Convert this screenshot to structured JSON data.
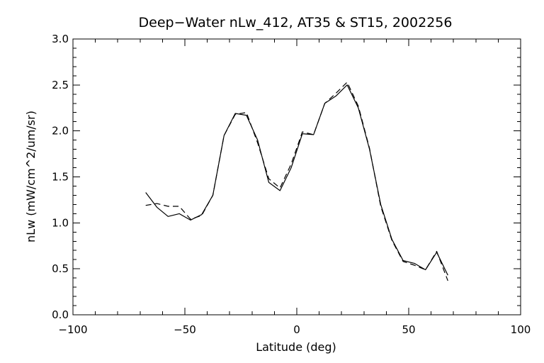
{
  "chart_data": {
    "type": "line",
    "title": "Deep−Water nLw_412, AT35 & ST15, 2002256",
    "xlabel": "Latitude (deg)",
    "ylabel": "nLw (mW/cm^2/um/sr)",
    "xlim": [
      -100,
      100
    ],
    "ylim": [
      0.0,
      3.0
    ],
    "x_ticks": [
      -100,
      -50,
      0,
      50,
      100
    ],
    "x_tick_labels": [
      "−100",
      "−50",
      "0",
      "50",
      "100"
    ],
    "y_ticks": [
      0.0,
      0.5,
      1.0,
      1.5,
      2.0,
      2.5,
      3.0
    ],
    "y_tick_labels": [
      "0.0",
      "0.5",
      "1.0",
      "1.5",
      "2.0",
      "2.5",
      "3.0"
    ],
    "grid": false,
    "legend": "none",
    "series": [
      {
        "style": "solid",
        "color": "#000000",
        "x": [
          -67.5,
          -62.5,
          -57.5,
          -52.5,
          -47.5,
          -42.5,
          -37.5,
          -32.5,
          -27.5,
          -22.5,
          -17.5,
          -12.5,
          -7.5,
          -2.5,
          2.5,
          7.5,
          12.5,
          17.5,
          22.5,
          27.5,
          32.5,
          37.5,
          42.5,
          47.5,
          52.5,
          57.5,
          62.5,
          67.5
        ],
        "y": [
          1.33,
          1.17,
          1.07,
          1.1,
          1.03,
          1.09,
          1.3,
          1.95,
          2.19,
          2.17,
          1.9,
          1.44,
          1.35,
          1.6,
          1.97,
          1.96,
          2.3,
          2.38,
          2.5,
          2.25,
          1.8,
          1.2,
          0.82,
          0.59,
          0.56,
          0.49,
          0.68,
          0.43
        ]
      },
      {
        "style": "dashed",
        "color": "#000000",
        "x": [
          -67.5,
          -62.5,
          -57.5,
          -52.5,
          -47.5,
          -42.5,
          -37.5,
          -32.5,
          -27.5,
          -22.5,
          -17.5,
          -12.5,
          -7.5,
          -2.5,
          2.5,
          7.5,
          12.5,
          17.5,
          22.5,
          27.5,
          32.5,
          37.5,
          42.5,
          47.5,
          52.5,
          57.5,
          62.5,
          67.5
        ],
        "y": [
          1.19,
          1.21,
          1.18,
          1.18,
          1.04,
          1.08,
          1.3,
          1.95,
          2.18,
          2.2,
          1.87,
          1.48,
          1.38,
          1.64,
          1.99,
          1.96,
          2.3,
          2.41,
          2.53,
          2.27,
          1.81,
          1.18,
          0.81,
          0.58,
          0.54,
          0.49,
          0.69,
          0.37
        ]
      }
    ]
  }
}
